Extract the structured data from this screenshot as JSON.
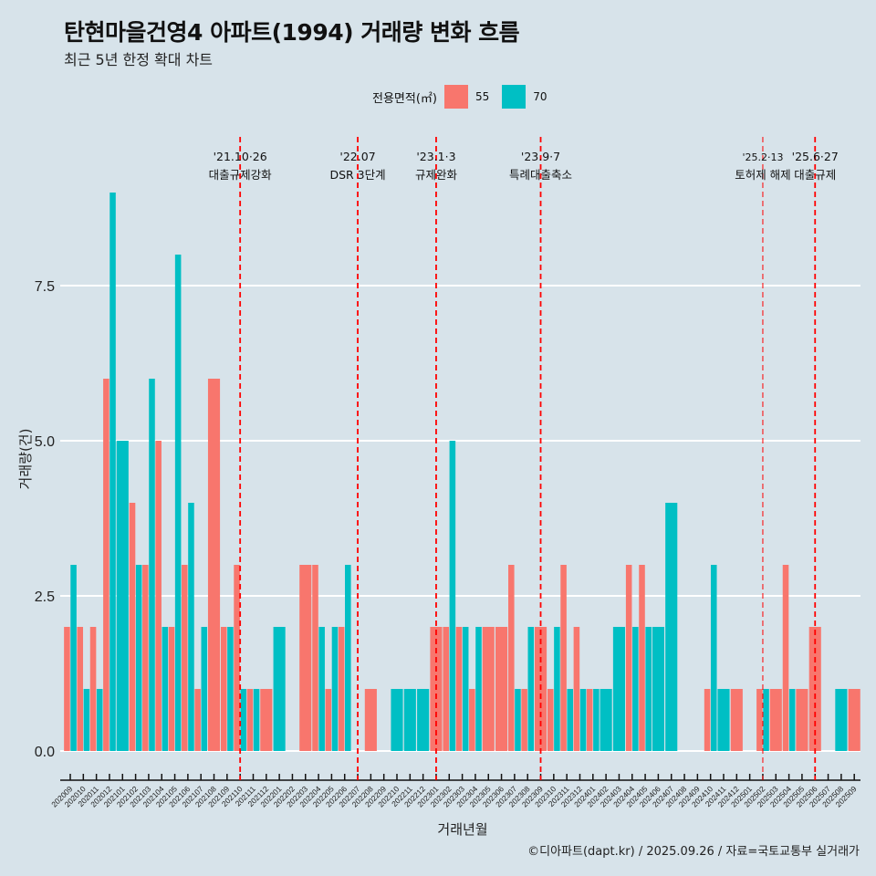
{
  "title": "탄현마을건영4 아파트(1994) 거래량 변화 흐름",
  "subtitle": "최근 5년 한정 확대 차트",
  "footer": "©디아파트(dapt.kr) / 2025.09.26 / 자료=국토교통부 실거래가",
  "colors": {
    "s55": "#f8766d",
    "s70": "#00bfc4",
    "grid": "#ffffff",
    "vline": "#ff0000",
    "bg": "#d7e3ea"
  },
  "legend": {
    "title": "전용면적(㎡)",
    "items": [
      {
        "label": "55",
        "color": "#f8766d"
      },
      {
        "label": "70",
        "color": "#00bfc4"
      }
    ],
    "position": "top"
  },
  "chart_data": {
    "type": "bar",
    "title": "탄현마을건영4 아파트(1994) 거래량 변화 흐름",
    "subtitle": "최근 5년 한정 확대 차트",
    "xlabel": "거래년월",
    "ylabel": "거래량(건)",
    "ylim": [
      0,
      9.5
    ],
    "yticks": [
      "0.0",
      "2.5",
      "5.0",
      "7.5"
    ],
    "ytick_values": [
      0,
      2.5,
      5,
      7.5
    ],
    "grid": "horizontal",
    "categories": [
      "202009",
      "202010",
      "202011",
      "202012",
      "202101",
      "202102",
      "202103",
      "202104",
      "202105",
      "202106",
      "202107",
      "202108",
      "202109",
      "202110",
      "202111",
      "202112",
      "202201",
      "202202",
      "202203",
      "202204",
      "202205",
      "202206",
      "202207",
      "202208",
      "202209",
      "202210",
      "202211",
      "202212",
      "202301",
      "202302",
      "202303",
      "202304",
      "202305",
      "202306",
      "202307",
      "202308",
      "202309",
      "202310",
      "202311",
      "202312",
      "202401",
      "202402",
      "202403",
      "202404",
      "202405",
      "202406",
      "202407",
      "202408",
      "202409",
      "202410",
      "202411",
      "202412",
      "202501",
      "202502",
      "202503",
      "202504",
      "202505",
      "202506",
      "202507",
      "202508",
      "202509"
    ],
    "series": [
      {
        "name": "55",
        "values": [
          2,
          2,
          2,
          6,
          null,
          4,
          3,
          5,
          2,
          3,
          1,
          6,
          2,
          3,
          1,
          1,
          null,
          null,
          3,
          3,
          1,
          2,
          null,
          1,
          null,
          null,
          null,
          null,
          2,
          2,
          2,
          1,
          2,
          2,
          3,
          1,
          2,
          1,
          3,
          2,
          1,
          null,
          null,
          3,
          3,
          null,
          null,
          null,
          null,
          1,
          null,
          1,
          null,
          1,
          1,
          3,
          1,
          2,
          null,
          null,
          1
        ]
      },
      {
        "name": "70",
        "values": [
          3,
          1,
          1,
          9,
          5,
          3,
          6,
          2,
          8,
          4,
          2,
          null,
          2,
          1,
          1,
          null,
          2,
          null,
          null,
          2,
          2,
          3,
          null,
          null,
          null,
          1,
          1,
          1,
          null,
          5,
          2,
          2,
          null,
          null,
          1,
          2,
          null,
          2,
          1,
          1,
          1,
          1,
          2,
          2,
          2,
          2,
          4,
          null,
          null,
          3,
          1,
          null,
          null,
          1,
          null,
          1,
          null,
          null,
          null,
          1,
          null
        ]
      }
    ],
    "annotations": [
      {
        "category": "202110",
        "date": "'21.10·26",
        "label": "대출규제강화"
      },
      {
        "category": "202207",
        "date": "'22.07",
        "label": "DSR 3단계"
      },
      {
        "category": "202301",
        "date": "'23.1·3",
        "label": "규제완화"
      },
      {
        "category": "202309",
        "date": "'23.9·7",
        "label": "특례대출축소"
      },
      {
        "category": "202502",
        "date": "'25.2·13",
        "label": "토허제 해제",
        "thin": true
      },
      {
        "category": "202506",
        "date": "'25.6·27",
        "label": "대출규제"
      }
    ]
  }
}
